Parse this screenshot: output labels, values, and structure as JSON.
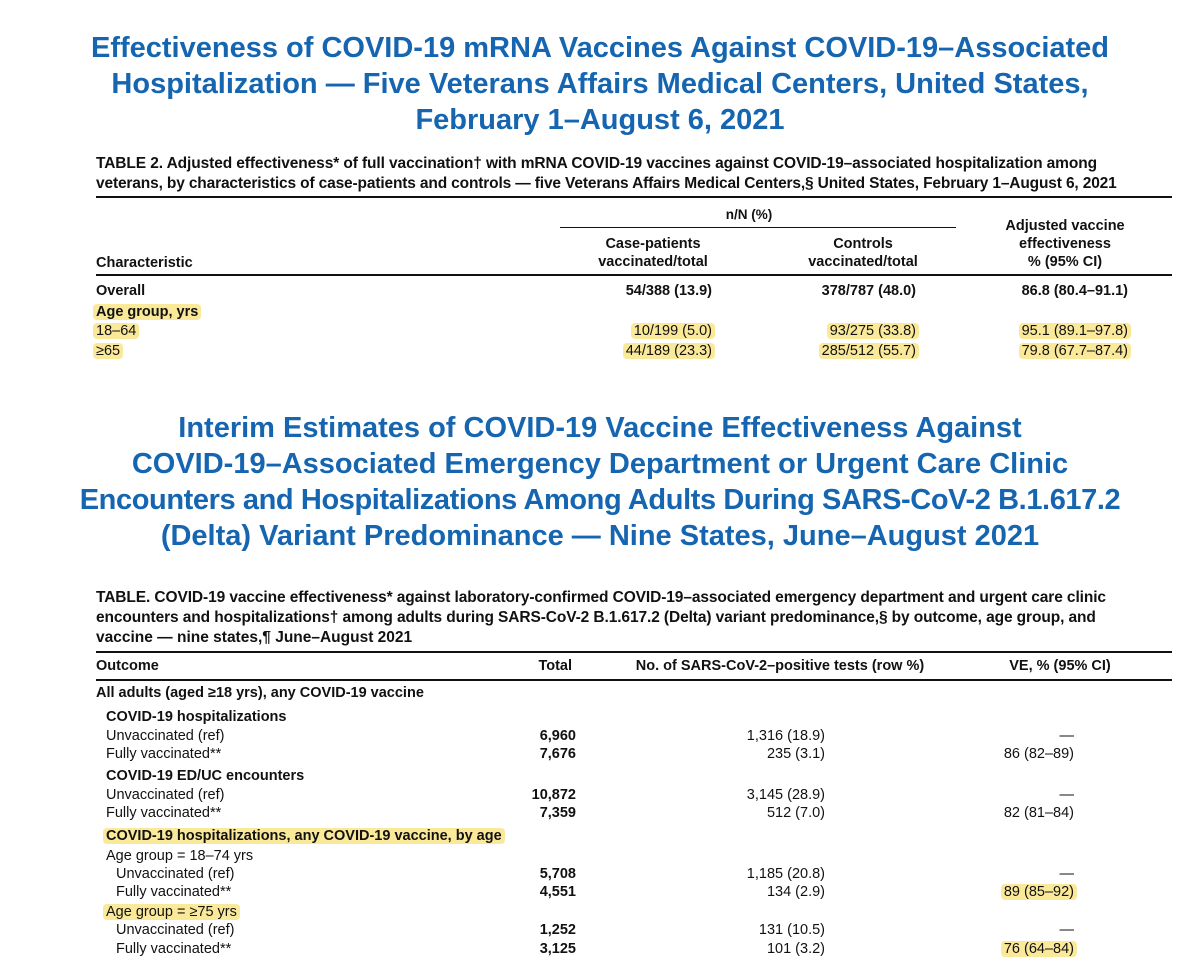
{
  "table1": {
    "title_lines": [
      "Effectiveness of COVID-19 mRNA Vaccines Against COVID-19–Associated",
      "Hospitalization — Five Veterans Affairs Medical Centers, United States,",
      "February 1–August 6, 2021"
    ],
    "caption_lines": [
      "TABLE 2. Adjusted effectiveness* of full vaccination† with mRNA COVID-19 vaccines against COVID-19–associated hospitalization among",
      "veterans, by characteristics of case-patients and controls — five Veterans Affairs Medical Centers,§ United States, February 1–August 6, 2021"
    ],
    "group_header": "n/N (%)",
    "col_characteristic": "Characteristic",
    "col_case_1": "Case-patients",
    "col_case_2": "vaccinated/total",
    "col_controls_1": "Controls",
    "col_controls_2": "vaccinated/total",
    "col_ve_1": "Adjusted vaccine",
    "col_ve_2": "effectiveness",
    "col_ve_3": "% (95% CI)",
    "rows": [
      {
        "label": "Overall",
        "case": "54/388 (13.9)",
        "controls": "378/787 (48.0)",
        "ve": "86.8 (80.4–91.1)"
      },
      {
        "label": "Age group, yrs",
        "case": "",
        "controls": "",
        "ve": ""
      },
      {
        "label": "18–64",
        "case": "10/199 (5.0)",
        "controls": "93/275 (33.8)",
        "ve": "95.1 (89.1–97.8)"
      },
      {
        "label": "≥65",
        "case": "44/189 (23.3)",
        "controls": "285/512 (55.7)",
        "ve": "79.8 (67.7–87.4)"
      }
    ]
  },
  "table2": {
    "title_lines": [
      "Interim Estimates of COVID-19 Vaccine Effectiveness Against",
      "COVID-19–Associated Emergency Department or Urgent Care Clinic",
      "Encounters and Hospitalizations Among Adults During SARS-CoV-2 B.1.617.2",
      "(Delta) Variant Predominance — Nine States, June–August 2021"
    ],
    "caption_lines": [
      "TABLE. COVID-19 vaccine effectiveness* against laboratory-confirmed COVID-19–associated emergency department and urgent care clinic",
      "encounters and hospitalizations† among adults during SARS-CoV-2 B.1.617.2 (Delta) variant predominance,§ by outcome, age group, and",
      "vaccine — nine states,¶ June–August 2021"
    ],
    "col_outcome": "Outcome",
    "col_total": "Total",
    "col_positive": "No. of SARS-CoV-2–positive tests (row %)",
    "col_ve": "VE, % (95% CI)",
    "rows": [
      {
        "label": "All adults (aged ≥18 yrs), any COVID-19 vaccine",
        "total": "",
        "positive": "",
        "ve": ""
      },
      {
        "label": "COVID-19 hospitalizations",
        "total": "",
        "positive": "",
        "ve": ""
      },
      {
        "label": "Unvaccinated (ref)",
        "total": "6,960",
        "positive": "1,316 (18.9)",
        "ve": "—"
      },
      {
        "label": "Fully vaccinated**",
        "total": "7,676",
        "positive": "235 (3.1)",
        "ve": "86 (82–89)"
      },
      {
        "label": "COVID-19 ED/UC encounters",
        "total": "",
        "positive": "",
        "ve": ""
      },
      {
        "label": "Unvaccinated (ref)",
        "total": "10,872",
        "positive": "3,145 (28.9)",
        "ve": "—"
      },
      {
        "label": "Fully vaccinated**",
        "total": "7,359",
        "positive": "512 (7.0)",
        "ve": "82 (81–84)"
      },
      {
        "label": "COVID-19 hospitalizations, any COVID-19 vaccine, by age",
        "total": "",
        "positive": "",
        "ve": ""
      },
      {
        "label": "Age group = 18–74 yrs",
        "total": "",
        "positive": "",
        "ve": ""
      },
      {
        "label": "Unvaccinated (ref)",
        "total": "5,708",
        "positive": "1,185 (20.8)",
        "ve": "—"
      },
      {
        "label": "Fully vaccinated**",
        "total": "4,551",
        "positive": "134 (2.9)",
        "ve": "89 (85–92)"
      },
      {
        "label": "Age group = ≥75 yrs",
        "total": "",
        "positive": "",
        "ve": ""
      },
      {
        "label": "Unvaccinated (ref)",
        "total": "1,252",
        "positive": "131 (10.5)",
        "ve": "—"
      },
      {
        "label": "Fully vaccinated**",
        "total": "3,125",
        "positive": "101 (3.2)",
        "ve": "76 (64–84)"
      }
    ]
  },
  "colors": {
    "title_blue": "#1565b0",
    "highlight": "#fbe99a"
  }
}
